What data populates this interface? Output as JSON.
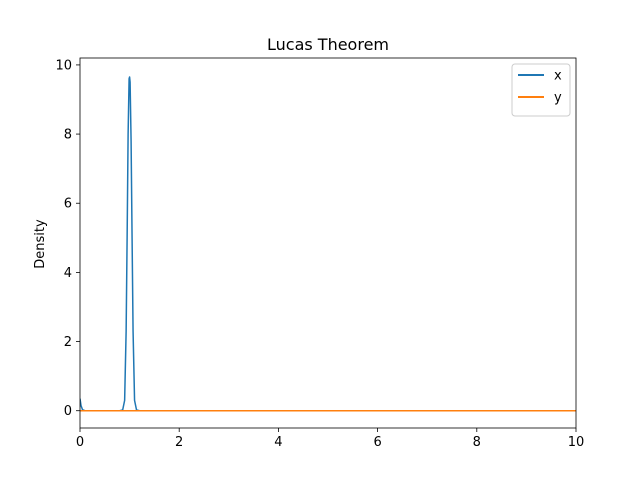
{
  "chart_data": {
    "type": "line",
    "title": "Lucas Theorem",
    "xlabel": "",
    "ylabel": "Density",
    "xlim": [
      0,
      10
    ],
    "ylim": [
      -0.5,
      10.2
    ],
    "xticks": [
      0,
      2,
      4,
      6,
      8,
      10
    ],
    "yticks": [
      0,
      2,
      4,
      6,
      8,
      10
    ],
    "grid": false,
    "legend_position": "top-right",
    "series": [
      {
        "name": "x",
        "color": "#1f77b4",
        "x": [
          0,
          0.02,
          0.05,
          0.1,
          0.3,
          0.6,
          0.8,
          0.86,
          0.9,
          0.93,
          0.95,
          0.97,
          0.99,
          1.0,
          1.01,
          1.03,
          1.05,
          1.07,
          1.1,
          1.14,
          1.2,
          1.5
        ],
        "y": [
          0.35,
          0.15,
          0.03,
          0.0,
          0.0,
          0.0,
          0.0,
          0.02,
          0.3,
          2.3,
          5.0,
          8.0,
          9.6,
          9.65,
          9.5,
          7.8,
          5.0,
          2.3,
          0.3,
          0.02,
          0.0,
          0.0
        ]
      },
      {
        "name": "y",
        "color": "#ff7f0e",
        "x": [
          0,
          2,
          4,
          6,
          8,
          10
        ],
        "y": [
          0,
          0,
          0,
          0,
          0,
          0
        ]
      }
    ]
  }
}
